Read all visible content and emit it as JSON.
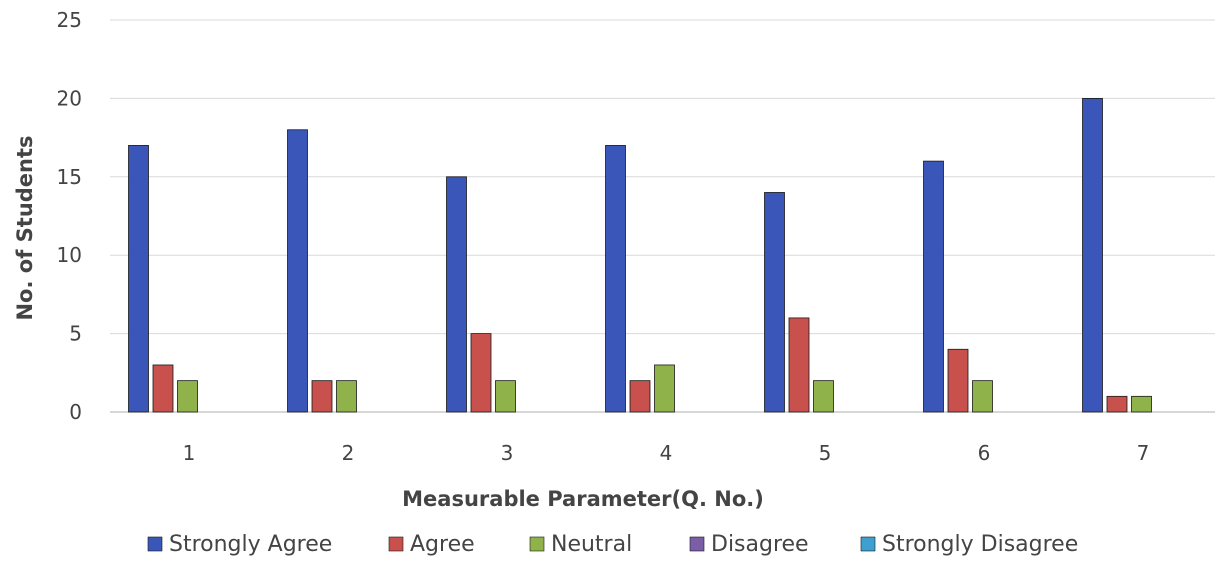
{
  "chart_data": {
    "type": "bar",
    "title": "",
    "xlabel": "Measurable Parameter(Q. No.)",
    "ylabel": "No. of Students",
    "ylim": [
      0,
      25
    ],
    "yticks": [
      0,
      5,
      10,
      15,
      20,
      25
    ],
    "grid": true,
    "legend_position": "bottom",
    "categories": [
      "1",
      "2",
      "3",
      "4",
      "5",
      "6",
      "7"
    ],
    "series": [
      {
        "name": "Strongly Agree",
        "color": "#3a56b8",
        "values": [
          17,
          18,
          15,
          17,
          14,
          16,
          20
        ]
      },
      {
        "name": "Agree",
        "color": "#c8514d",
        "values": [
          3,
          2,
          5,
          2,
          6,
          4,
          1
        ]
      },
      {
        "name": "Neutral",
        "color": "#8fb34a",
        "values": [
          2,
          2,
          2,
          3,
          2,
          2,
          1
        ]
      },
      {
        "name": "Disagree",
        "color": "#7a5ea8",
        "values": [
          0,
          0,
          0,
          0,
          0,
          0,
          0
        ]
      },
      {
        "name": "Strongly Disagree",
        "color": "#3e9fd1",
        "values": [
          0,
          0,
          0,
          0,
          0,
          0,
          0
        ]
      }
    ]
  }
}
